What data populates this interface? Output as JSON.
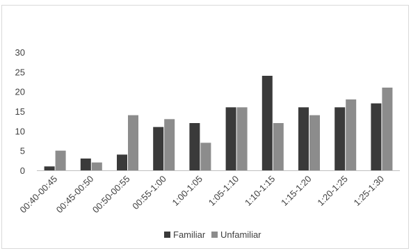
{
  "chart_data": {
    "type": "bar",
    "categories": [
      "00:40-00:45",
      "00:45-00:50",
      "00:50-00:55",
      "00:55-1:00",
      "1:00-1:05",
      "1:05-1:10",
      "1:10-1:15",
      "1:15-1:20",
      "1:20-1:25",
      "1:25-1:30"
    ],
    "series": [
      {
        "name": "Familiar",
        "values": [
          1,
          3,
          4,
          11,
          12,
          16,
          24,
          16,
          16,
          17
        ],
        "color": "#3a3a3a"
      },
      {
        "name": "Unfamiliar",
        "values": [
          5,
          2,
          14,
          13,
          7,
          16,
          12,
          14,
          18,
          21
        ],
        "color": "#8c8c8c"
      }
    ],
    "yticks": [
      "0",
      "5",
      "10",
      "15",
      "20",
      "25",
      "30"
    ],
    "ylim": [
      0,
      30
    ],
    "grid": false,
    "legend_position": "bottom"
  }
}
